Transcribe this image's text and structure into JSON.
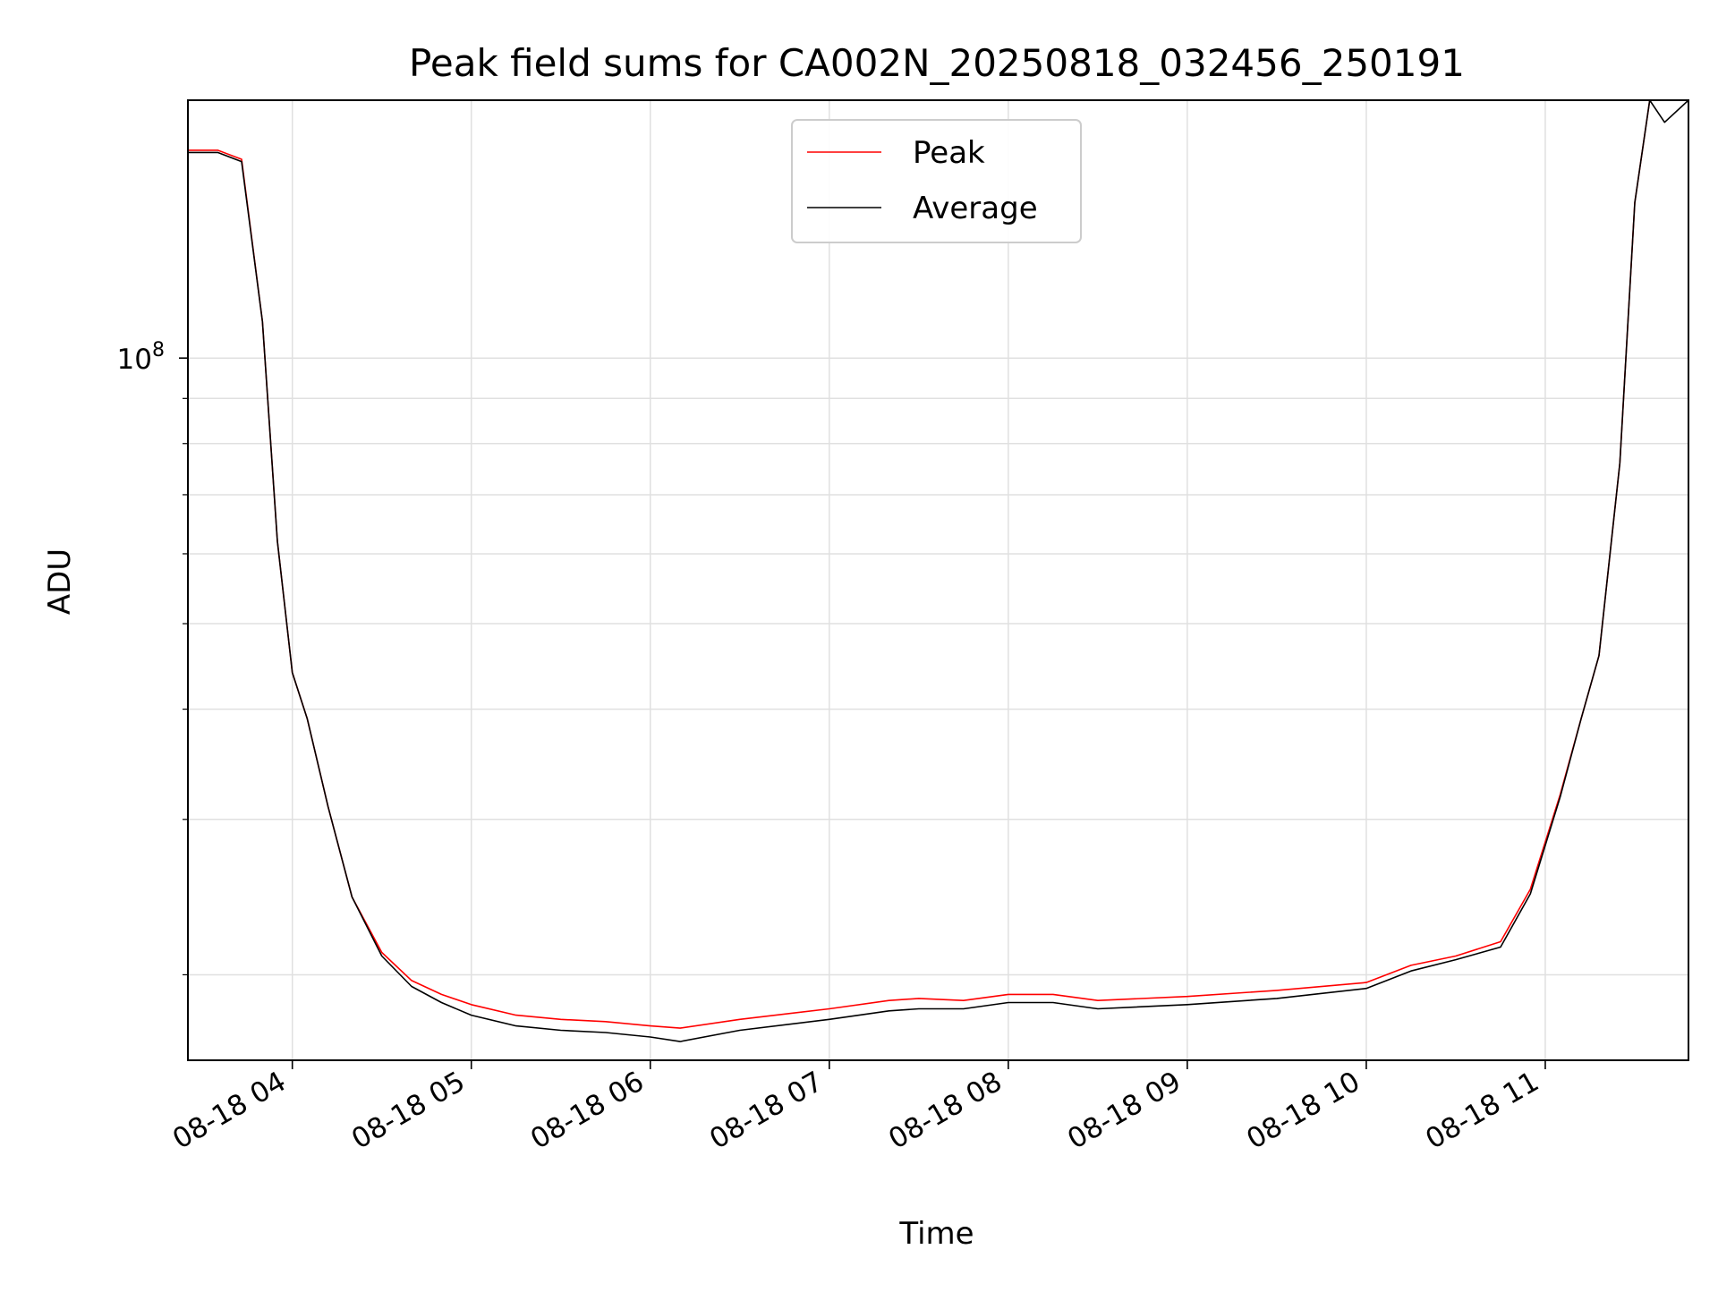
{
  "chart_data": {
    "type": "line",
    "title": "Peak field sums for CA002N_20250818_032456_250191",
    "xlabel": "Time",
    "ylabel": "ADU",
    "y_scale": "log",
    "x_unit": "datetime",
    "x_tick_labels": [
      "08-18 04",
      "08-18 05",
      "08-18 06",
      "08-18 07",
      "08-18 08",
      "08-18 09",
      "08-18 10",
      "08-18 11"
    ],
    "x_ticks": [
      "2025-08-18T04:00",
      "2025-08-18T05:00",
      "2025-08-18T06:00",
      "2025-08-18T07:00",
      "2025-08-18T08:00",
      "2025-08-18T09:00",
      "2025-08-18T10:00",
      "2025-08-18T11:00"
    ],
    "xlim": [
      "2025-08-18T03:25",
      "2025-08-18T11:48"
    ],
    "y_major_tick": {
      "label_base": "10",
      "label_exponent": "8",
      "value": 100000000
    },
    "ylim": [
      16000000,
      196000000
    ],
    "grid": true,
    "legend_position": "upper center",
    "series": [
      {
        "name": "Peak",
        "color": "#ff0000",
        "x": [
          "2025-08-18T03:25",
          "2025-08-18T03:35",
          "2025-08-18T03:43",
          "2025-08-18T03:50",
          "2025-08-18T03:55",
          "2025-08-18T04:00",
          "2025-08-18T04:05",
          "2025-08-18T04:12",
          "2025-08-18T04:20",
          "2025-08-18T04:30",
          "2025-08-18T04:40",
          "2025-08-18T04:50",
          "2025-08-18T05:00",
          "2025-08-18T05:15",
          "2025-08-18T05:30",
          "2025-08-18T05:45",
          "2025-08-18T06:00",
          "2025-08-18T06:10",
          "2025-08-18T06:30",
          "2025-08-18T07:00",
          "2025-08-18T07:20",
          "2025-08-18T07:30",
          "2025-08-18T07:45",
          "2025-08-18T08:00",
          "2025-08-18T08:15",
          "2025-08-18T08:30",
          "2025-08-18T09:00",
          "2025-08-18T09:30",
          "2025-08-18T10:00",
          "2025-08-18T10:15",
          "2025-08-18T10:30",
          "2025-08-18T10:45",
          "2025-08-18T10:55",
          "2025-08-18T11:05",
          "2025-08-18T11:12",
          "2025-08-18T11:18",
          "2025-08-18T11:25",
          "2025-08-18T11:30",
          "2025-08-18T11:35"
        ],
        "y": [
          172000000,
          172000000,
          168000000,
          110000000,
          62000000,
          44000000,
          39000000,
          31000000,
          24500000,
          21200000,
          19700000,
          19000000,
          18500000,
          18000000,
          17800000,
          17700000,
          17500000,
          17400000,
          17800000,
          18300000,
          18700000,
          18800000,
          18700000,
          19000000,
          19000000,
          18700000,
          18900000,
          19200000,
          19600000,
          20500000,
          21000000,
          21800000,
          25000000,
          32000000,
          39000000,
          46000000,
          76000000,
          150000000,
          196000000
        ]
      },
      {
        "name": "Average",
        "color": "#000000",
        "x": [
          "2025-08-18T03:25",
          "2025-08-18T03:35",
          "2025-08-18T03:43",
          "2025-08-18T03:50",
          "2025-08-18T03:55",
          "2025-08-18T04:00",
          "2025-08-18T04:05",
          "2025-08-18T04:12",
          "2025-08-18T04:20",
          "2025-08-18T04:30",
          "2025-08-18T04:40",
          "2025-08-18T04:50",
          "2025-08-18T05:00",
          "2025-08-18T05:15",
          "2025-08-18T05:30",
          "2025-08-18T05:45",
          "2025-08-18T06:00",
          "2025-08-18T06:10",
          "2025-08-18T06:30",
          "2025-08-18T07:00",
          "2025-08-18T07:20",
          "2025-08-18T07:30",
          "2025-08-18T07:45",
          "2025-08-18T08:00",
          "2025-08-18T08:15",
          "2025-08-18T08:30",
          "2025-08-18T09:00",
          "2025-08-18T09:30",
          "2025-08-18T10:00",
          "2025-08-18T10:15",
          "2025-08-18T10:30",
          "2025-08-18T10:45",
          "2025-08-18T10:55",
          "2025-08-18T11:05",
          "2025-08-18T11:12",
          "2025-08-18T11:18",
          "2025-08-18T11:25",
          "2025-08-18T11:30",
          "2025-08-18T11:35",
          "2025-08-18T11:40",
          "2025-08-18T11:48"
        ],
        "y": [
          171000000,
          171000000,
          167000000,
          110000000,
          62000000,
          44000000,
          39000000,
          31000000,
          24500000,
          21000000,
          19400000,
          18600000,
          18000000,
          17500000,
          17300000,
          17200000,
          17000000,
          16800000,
          17300000,
          17800000,
          18200000,
          18300000,
          18300000,
          18600000,
          18600000,
          18300000,
          18500000,
          18800000,
          19300000,
          20200000,
          20800000,
          21500000,
          24700000,
          31800000,
          39000000,
          46000000,
          76000000,
          150000000,
          196000000,
          185000000,
          196000000
        ]
      }
    ]
  }
}
